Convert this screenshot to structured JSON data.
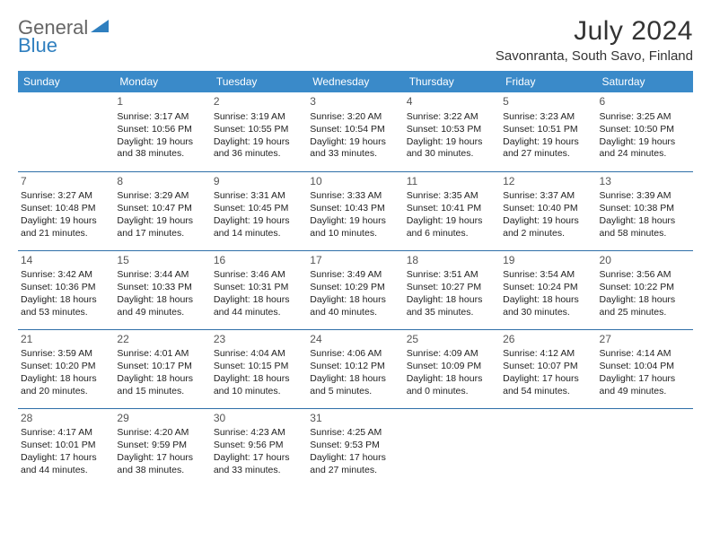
{
  "logo": {
    "part1": "General",
    "part2": "Blue"
  },
  "title": "July 2024",
  "location": "Savonranta, South Savo, Finland",
  "colors": {
    "header_bg": "#3a8ac9",
    "header_text": "#ffffff",
    "border": "#2f6fa8",
    "daynum": "#555555",
    "body_text": "#222222",
    "logo_gray": "#666666",
    "logo_blue": "#2f7fbf",
    "background": "#ffffff"
  },
  "weekdays": [
    "Sunday",
    "Monday",
    "Tuesday",
    "Wednesday",
    "Thursday",
    "Friday",
    "Saturday"
  ],
  "weeks": [
    [
      null,
      {
        "n": "1",
        "sr": "3:17 AM",
        "ss": "10:56 PM",
        "dl": "19 hours and 38 minutes."
      },
      {
        "n": "2",
        "sr": "3:19 AM",
        "ss": "10:55 PM",
        "dl": "19 hours and 36 minutes."
      },
      {
        "n": "3",
        "sr": "3:20 AM",
        "ss": "10:54 PM",
        "dl": "19 hours and 33 minutes."
      },
      {
        "n": "4",
        "sr": "3:22 AM",
        "ss": "10:53 PM",
        "dl": "19 hours and 30 minutes."
      },
      {
        "n": "5",
        "sr": "3:23 AM",
        "ss": "10:51 PM",
        "dl": "19 hours and 27 minutes."
      },
      {
        "n": "6",
        "sr": "3:25 AM",
        "ss": "10:50 PM",
        "dl": "19 hours and 24 minutes."
      }
    ],
    [
      {
        "n": "7",
        "sr": "3:27 AM",
        "ss": "10:48 PM",
        "dl": "19 hours and 21 minutes."
      },
      {
        "n": "8",
        "sr": "3:29 AM",
        "ss": "10:47 PM",
        "dl": "19 hours and 17 minutes."
      },
      {
        "n": "9",
        "sr": "3:31 AM",
        "ss": "10:45 PM",
        "dl": "19 hours and 14 minutes."
      },
      {
        "n": "10",
        "sr": "3:33 AM",
        "ss": "10:43 PM",
        "dl": "19 hours and 10 minutes."
      },
      {
        "n": "11",
        "sr": "3:35 AM",
        "ss": "10:41 PM",
        "dl": "19 hours and 6 minutes."
      },
      {
        "n": "12",
        "sr": "3:37 AM",
        "ss": "10:40 PM",
        "dl": "19 hours and 2 minutes."
      },
      {
        "n": "13",
        "sr": "3:39 AM",
        "ss": "10:38 PM",
        "dl": "18 hours and 58 minutes."
      }
    ],
    [
      {
        "n": "14",
        "sr": "3:42 AM",
        "ss": "10:36 PM",
        "dl": "18 hours and 53 minutes."
      },
      {
        "n": "15",
        "sr": "3:44 AM",
        "ss": "10:33 PM",
        "dl": "18 hours and 49 minutes."
      },
      {
        "n": "16",
        "sr": "3:46 AM",
        "ss": "10:31 PM",
        "dl": "18 hours and 44 minutes."
      },
      {
        "n": "17",
        "sr": "3:49 AM",
        "ss": "10:29 PM",
        "dl": "18 hours and 40 minutes."
      },
      {
        "n": "18",
        "sr": "3:51 AM",
        "ss": "10:27 PM",
        "dl": "18 hours and 35 minutes."
      },
      {
        "n": "19",
        "sr": "3:54 AM",
        "ss": "10:24 PM",
        "dl": "18 hours and 30 minutes."
      },
      {
        "n": "20",
        "sr": "3:56 AM",
        "ss": "10:22 PM",
        "dl": "18 hours and 25 minutes."
      }
    ],
    [
      {
        "n": "21",
        "sr": "3:59 AM",
        "ss": "10:20 PM",
        "dl": "18 hours and 20 minutes."
      },
      {
        "n": "22",
        "sr": "4:01 AM",
        "ss": "10:17 PM",
        "dl": "18 hours and 15 minutes."
      },
      {
        "n": "23",
        "sr": "4:04 AM",
        "ss": "10:15 PM",
        "dl": "18 hours and 10 minutes."
      },
      {
        "n": "24",
        "sr": "4:06 AM",
        "ss": "10:12 PM",
        "dl": "18 hours and 5 minutes."
      },
      {
        "n": "25",
        "sr": "4:09 AM",
        "ss": "10:09 PM",
        "dl": "18 hours and 0 minutes."
      },
      {
        "n": "26",
        "sr": "4:12 AM",
        "ss": "10:07 PM",
        "dl": "17 hours and 54 minutes."
      },
      {
        "n": "27",
        "sr": "4:14 AM",
        "ss": "10:04 PM",
        "dl": "17 hours and 49 minutes."
      }
    ],
    [
      {
        "n": "28",
        "sr": "4:17 AM",
        "ss": "10:01 PM",
        "dl": "17 hours and 44 minutes."
      },
      {
        "n": "29",
        "sr": "4:20 AM",
        "ss": "9:59 PM",
        "dl": "17 hours and 38 minutes."
      },
      {
        "n": "30",
        "sr": "4:23 AM",
        "ss": "9:56 PM",
        "dl": "17 hours and 33 minutes."
      },
      {
        "n": "31",
        "sr": "4:25 AM",
        "ss": "9:53 PM",
        "dl": "17 hours and 27 minutes."
      },
      null,
      null,
      null
    ]
  ],
  "labels": {
    "sunrise": "Sunrise:",
    "sunset": "Sunset:",
    "daylight": "Daylight:"
  }
}
